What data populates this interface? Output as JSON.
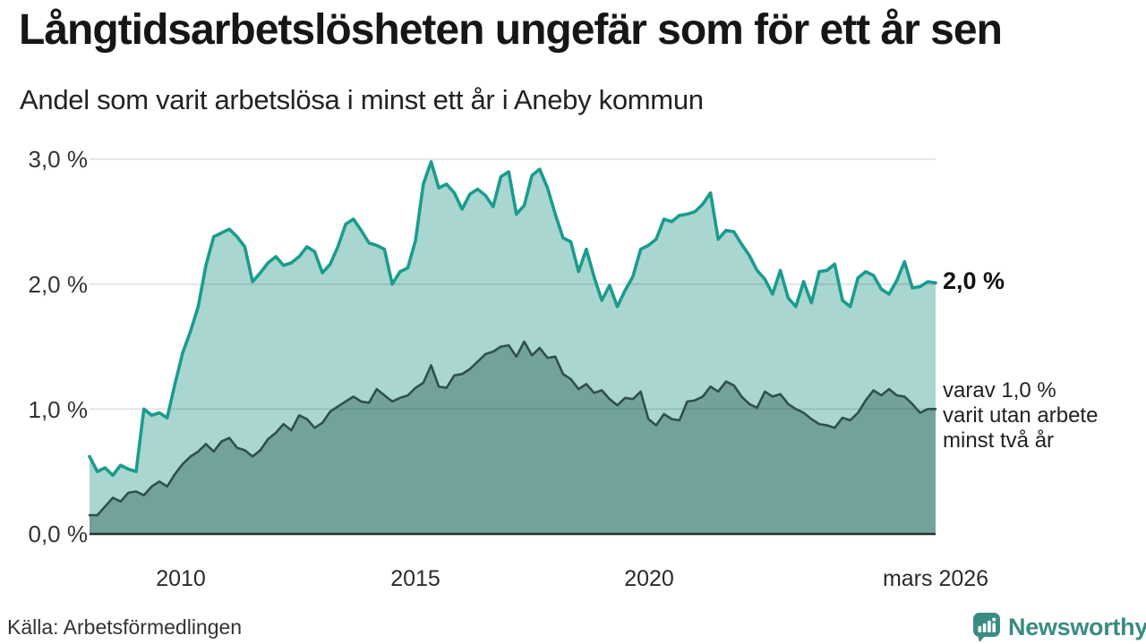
{
  "header": {
    "title": "Långtidsarbetslösheten ungefär som för ett år sen",
    "subtitle": "Andel som varit arbetslösa i minst ett år i Aneby kommun"
  },
  "annotations": {
    "latest_total": "2,0 %",
    "latest_two_years_lines": [
      "varav 1,0 %",
      "varit utan arbete",
      "minst två år"
    ]
  },
  "footer": {
    "source": "Källa: Arbetsförmedlingen",
    "logo_text": "Newsworthy",
    "logo_icon": "speech-bubble-bar-chart-icon"
  },
  "colors": {
    "line_1yr": "#1a9c8d",
    "fill_1yr": "#a9d6d0",
    "line_2yr": "#30504b",
    "fill_2yr": "#73a29b",
    "gridline": "rgba(40,40,40,0.15)",
    "axis": "#2d2d2d",
    "brand_teal": "#3a8c82",
    "title_text": "#161616"
  },
  "chart_data": {
    "type": "area",
    "title": "Långtidsarbetslösheten ungefär som för ett år sen",
    "subtitle": "Andel som varit arbetslösa i minst ett år i Aneby kommun",
    "unit": "%",
    "x_start_year": 2008.0,
    "x_end_year": 2026.25,
    "step_months": 2,
    "ylim": [
      0,
      3.2
    ],
    "grid": "horizontal",
    "legend_position": "right-edge-annotations",
    "y_ticks": [
      {
        "v": 3,
        "label": "3,0 %"
      },
      {
        "v": 2,
        "label": "2,0 %"
      },
      {
        "v": 1,
        "label": "1,0 %"
      },
      {
        "v": 0,
        "label": "0,0 %"
      }
    ],
    "x_ticks": [
      {
        "year": 2010,
        "label": "2010"
      },
      {
        "year": 2015,
        "label": "2015"
      },
      {
        "year": 2020,
        "label": "2020"
      },
      {
        "year": 2026.25,
        "label": "mars 2026"
      }
    ],
    "series": [
      {
        "name": "Andel arbetslösa minst ett år",
        "latest_label": "2,0 %",
        "values": [
          0.62,
          0.5,
          0.53,
          0.47,
          0.55,
          0.52,
          0.5,
          1.0,
          0.95,
          0.97,
          0.93,
          1.2,
          1.45,
          1.62,
          1.82,
          2.15,
          2.38,
          2.41,
          2.44,
          2.38,
          2.3,
          2.02,
          2.09,
          2.17,
          2.22,
          2.15,
          2.17,
          2.22,
          2.3,
          2.26,
          2.09,
          2.16,
          2.3,
          2.48,
          2.52,
          2.43,
          2.33,
          2.31,
          2.28,
          2.0,
          2.1,
          2.13,
          2.35,
          2.8,
          2.98,
          2.77,
          2.8,
          2.73,
          2.6,
          2.72,
          2.76,
          2.71,
          2.62,
          2.86,
          2.9,
          2.56,
          2.63,
          2.87,
          2.92,
          2.77,
          2.56,
          2.37,
          2.34,
          2.1,
          2.28,
          2.06,
          1.87,
          1.99,
          1.82,
          1.95,
          2.06,
          2.28,
          2.31,
          2.36,
          2.52,
          2.5,
          2.55,
          2.56,
          2.58,
          2.64,
          2.73,
          2.36,
          2.43,
          2.42,
          2.32,
          2.23,
          2.11,
          2.04,
          1.92,
          2.11,
          1.89,
          1.82,
          2.02,
          1.85,
          2.1,
          2.11,
          2.16,
          1.87,
          1.82,
          2.05,
          2.1,
          2.07,
          1.96,
          1.92,
          2.03,
          2.18,
          1.97,
          1.98,
          2.02,
          2.01
        ]
      },
      {
        "name": "varav utan arbete minst två år",
        "latest_label": "1,0 %",
        "values": [
          0.15,
          0.15,
          0.22,
          0.29,
          0.26,
          0.33,
          0.34,
          0.31,
          0.38,
          0.42,
          0.38,
          0.48,
          0.56,
          0.62,
          0.66,
          0.72,
          0.66,
          0.74,
          0.77,
          0.69,
          0.67,
          0.62,
          0.67,
          0.76,
          0.81,
          0.88,
          0.83,
          0.95,
          0.92,
          0.85,
          0.89,
          0.98,
          1.02,
          1.06,
          1.1,
          1.06,
          1.05,
          1.16,
          1.11,
          1.06,
          1.09,
          1.11,
          1.17,
          1.21,
          1.35,
          1.18,
          1.17,
          1.27,
          1.28,
          1.32,
          1.38,
          1.44,
          1.46,
          1.5,
          1.51,
          1.42,
          1.54,
          1.43,
          1.49,
          1.41,
          1.42,
          1.28,
          1.24,
          1.16,
          1.2,
          1.13,
          1.15,
          1.08,
          1.03,
          1.09,
          1.08,
          1.14,
          0.92,
          0.87,
          0.96,
          0.92,
          0.91,
          1.06,
          1.07,
          1.1,
          1.18,
          1.14,
          1.22,
          1.19,
          1.1,
          1.04,
          1.01,
          1.14,
          1.1,
          1.12,
          1.04,
          1.0,
          0.97,
          0.92,
          0.88,
          0.87,
          0.85,
          0.93,
          0.91,
          0.97,
          1.07,
          1.15,
          1.11,
          1.16,
          1.11,
          1.1,
          1.04,
          0.97,
          1.0,
          1.0
        ]
      }
    ]
  }
}
